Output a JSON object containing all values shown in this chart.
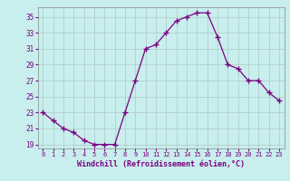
{
  "x": [
    0,
    1,
    2,
    3,
    4,
    5,
    6,
    7,
    8,
    9,
    10,
    11,
    12,
    13,
    14,
    15,
    16,
    17,
    18,
    19,
    20,
    21,
    22,
    23
  ],
  "y": [
    23,
    22,
    21,
    20.5,
    19.5,
    19,
    19,
    19,
    23,
    27,
    31,
    31.5,
    33,
    34.5,
    35,
    35.5,
    35.5,
    32.5,
    29,
    28.5,
    27,
    27,
    25.5,
    24.5
  ],
  "xlim": [
    -0.5,
    23.5
  ],
  "ylim": [
    18.5,
    36.2
  ],
  "yticks": [
    19,
    21,
    23,
    25,
    27,
    29,
    31,
    33,
    35
  ],
  "xticks": [
    0,
    1,
    2,
    3,
    4,
    5,
    6,
    7,
    8,
    9,
    10,
    11,
    12,
    13,
    14,
    15,
    16,
    17,
    18,
    19,
    20,
    21,
    22,
    23
  ],
  "xlabel": "Windchill (Refroidissement éolien,°C)",
  "line_color": "#7b0080",
  "marker": "+",
  "bg_color": "#c8eeee",
  "grid_color": "#b0c8c8",
  "label_color": "#7b0080",
  "tick_color": "#7b0080"
}
